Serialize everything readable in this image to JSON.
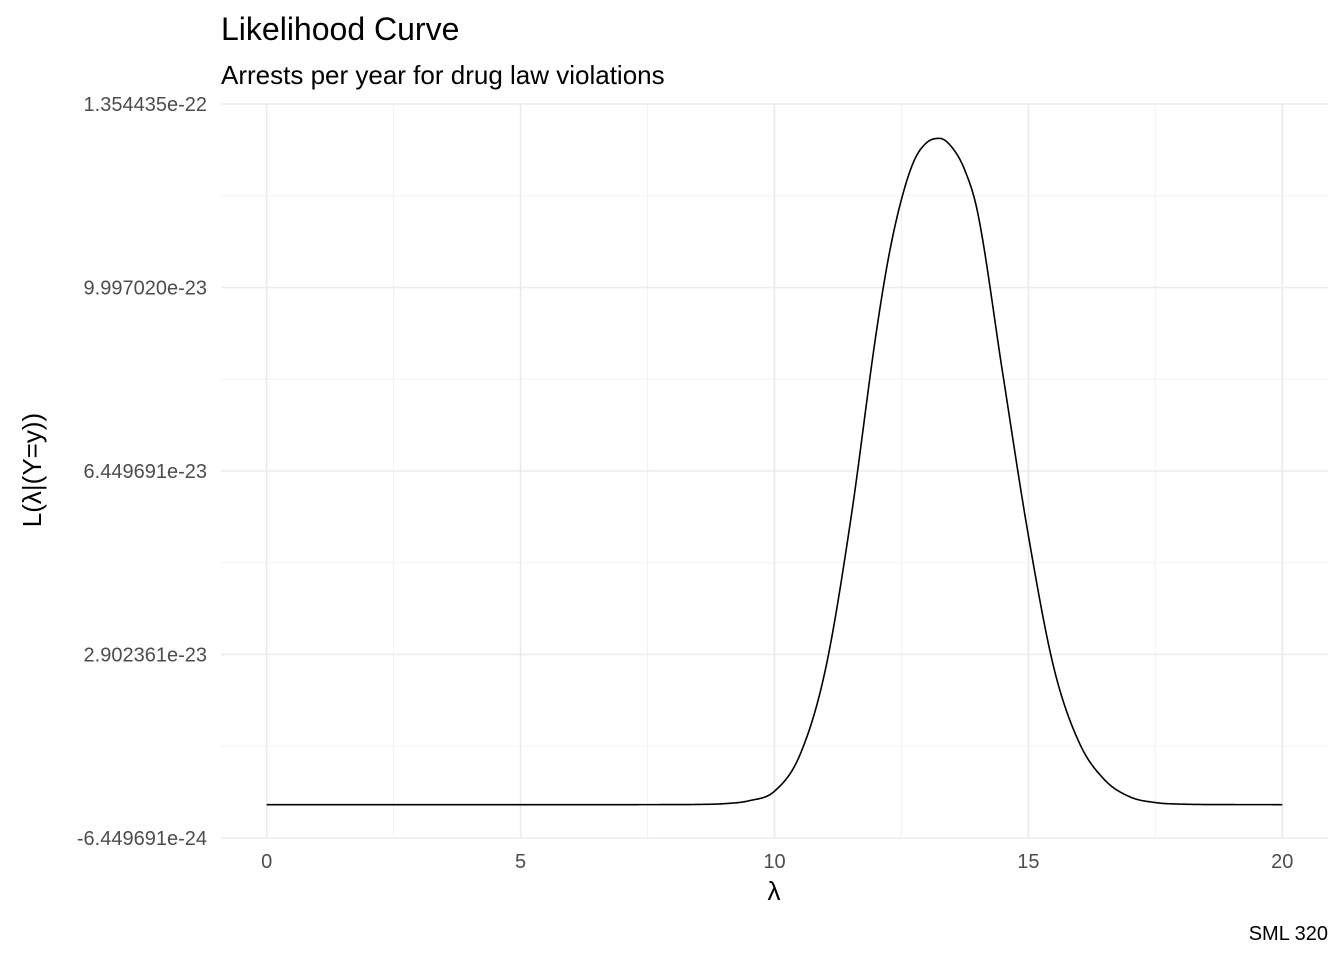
{
  "chart_data": {
    "type": "line",
    "title": "Likelihood Curve",
    "subtitle": "Arrests per year for drug law violations",
    "xlabel": "λ",
    "ylabel": "L(λ|(Y=y))",
    "caption": "SML 320",
    "xlim": [
      -0.9,
      20.9
    ],
    "ylim": [
      -6.449691e-24,
      1.354435e-22
    ],
    "x_ticks": [
      0,
      5,
      10,
      15,
      20
    ],
    "x_tick_labels": [
      "0",
      "5",
      "10",
      "15",
      "20"
    ],
    "y_ticks": [
      -6.449691e-24,
      2.902361e-23,
      6.449691e-23,
      9.99702e-23,
      1.354435e-22
    ],
    "y_tick_labels": [
      "-6.449691e-24",
      "2.902361e-23",
      "6.449691e-23",
      "9.997020e-23",
      "1.354435e-22"
    ],
    "grid": true,
    "series": [
      {
        "color": "#000000",
        "x": [
          0,
          1,
          2,
          3,
          4,
          5,
          6,
          7,
          8,
          8.5,
          9,
          9.5,
          10,
          10.5,
          11,
          11.5,
          12,
          12.25,
          12.5,
          12.75,
          13,
          13.25,
          13.5,
          13.75,
          14,
          14.5,
          15,
          15.5,
          16,
          16.5,
          17,
          17.5,
          18,
          19,
          20
        ],
        "y": [
          0,
          0,
          0,
          0,
          0,
          0,
          0,
          0,
          1e-26,
          4e-26,
          1.8e-25,
          7.5e-25,
          2.6e-24,
          9.6e-24,
          2.6e-23,
          5.5e-23,
          9.1e-23,
          1.06e-22,
          1.17e-22,
          1.245e-22,
          1.28e-22,
          1.288e-22,
          1.27e-22,
          1.226e-22,
          1.145e-22,
          8.3e-23,
          5.2e-23,
          2.65e-23,
          1.2e-23,
          4.8e-24,
          1.5e-24,
          4e-25,
          1e-25,
          5e-27,
          0
        ]
      }
    ]
  }
}
